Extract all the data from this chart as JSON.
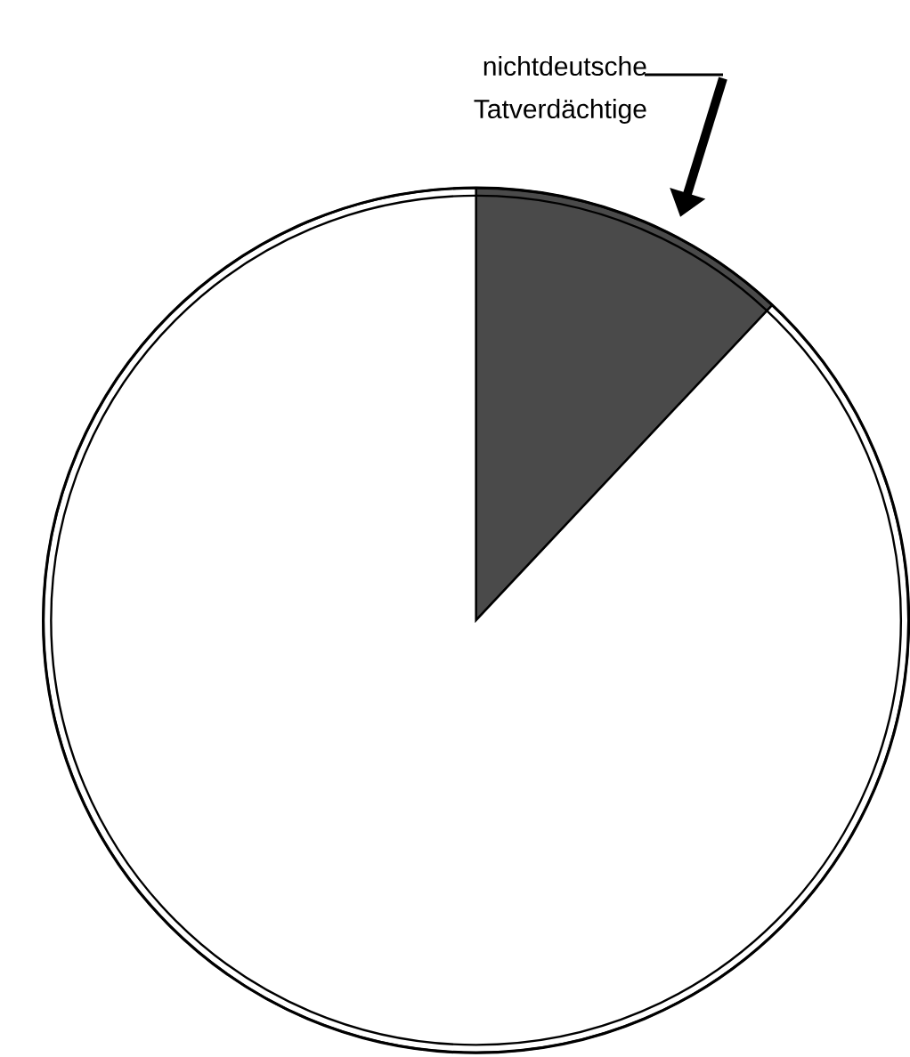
{
  "chart_data": {
    "type": "pie",
    "categories": [
      "nichtdeutsche Tatverdächtige",
      null
    ],
    "values": [
      12,
      88
    ],
    "colors": [
      "#4a4a4a",
      "#ffffff"
    ]
  }
}
